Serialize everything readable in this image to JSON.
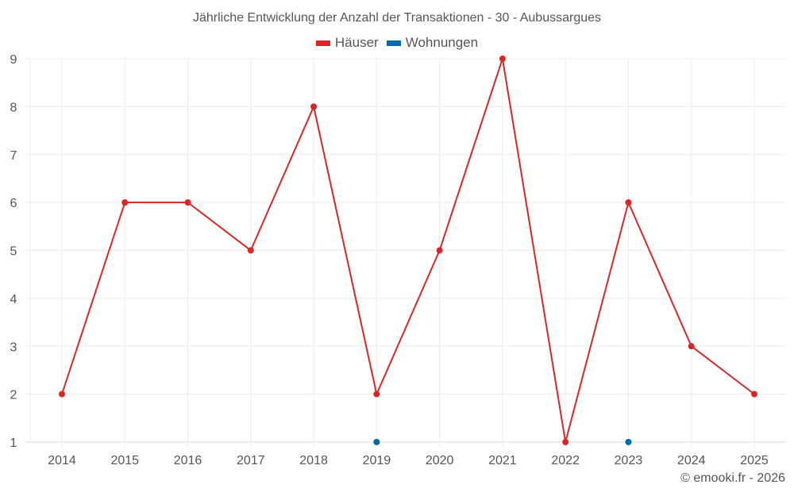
{
  "title": "Jährliche Entwicklung der Anzahl der Transaktionen - 30 - Aubussargues",
  "legend": [
    {
      "label": "Häuser",
      "color": "#d62728"
    },
    {
      "label": "Wohnungen",
      "color": "#0868ac"
    }
  ],
  "footer": "© emooki.fr - 2026",
  "chart_data": {
    "type": "line",
    "title": "Jährliche Entwicklung der Anzahl der Transaktionen - 30 - Aubussargues",
    "xlabel": "",
    "ylabel": "",
    "categories": [
      "2014",
      "2015",
      "2016",
      "2017",
      "2018",
      "2019",
      "2020",
      "2021",
      "2022",
      "2023",
      "2024",
      "2025"
    ],
    "series": [
      {
        "name": "Häuser",
        "color": "#d62728",
        "values": [
          2,
          6,
          6,
          5,
          8,
          2,
          5,
          9,
          1,
          6,
          3,
          2
        ]
      },
      {
        "name": "Wohnungen",
        "color": "#0868ac",
        "values": [
          null,
          null,
          null,
          null,
          null,
          1,
          null,
          null,
          null,
          1,
          null,
          null
        ]
      }
    ],
    "yticks": [
      1,
      2,
      3,
      4,
      5,
      6,
      7,
      8,
      9
    ],
    "ylim": [
      1,
      9
    ],
    "grid": true,
    "legend_position": "top"
  }
}
